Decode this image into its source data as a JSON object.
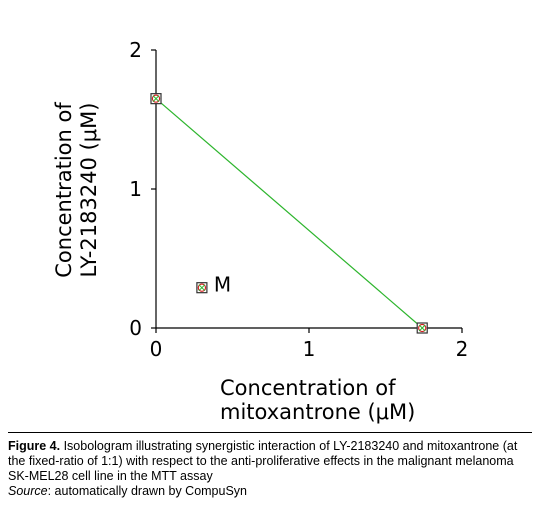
{
  "chart_data": {
    "type": "scatter",
    "title": "",
    "xlabel_line1": "Concentration of",
    "xlabel_line2": "mitoxantrone (μM)",
    "ylabel_line1": "Concentration of",
    "ylabel_line2": "LY-2183240 (μM)",
    "xlim": [
      0,
      2
    ],
    "ylim": [
      0,
      2
    ],
    "xticks": [
      "0",
      "1",
      "2"
    ],
    "yticks": [
      "0",
      "1",
      "2"
    ],
    "grid": false,
    "isobole": {
      "points": [
        {
          "x": 0,
          "y": 1.65
        },
        {
          "x": 1.74,
          "y": 0
        }
      ],
      "color": "#2db52d"
    },
    "points": [
      {
        "label": "",
        "x": 0,
        "y": 1.65
      },
      {
        "label": "",
        "x": 1.74,
        "y": 0
      },
      {
        "label": "M",
        "x": 0.3,
        "y": 0.29
      }
    ],
    "marker_color_outer": "#d21e1e",
    "marker_color_inner": "#2db52d"
  },
  "caption": {
    "figure_label": "Figure 4.",
    "text": " Isobologram illustrating synergistic interaction of LY-2183240 and mitoxantrone (at the fixed-ratio of 1:1) with respect to the anti-proliferative effects in the malignant melanoma SK-MEL28 cell line in the MTT assay",
    "source_label": "Source",
    "source_text": ": automatically drawn by CompuSyn"
  }
}
